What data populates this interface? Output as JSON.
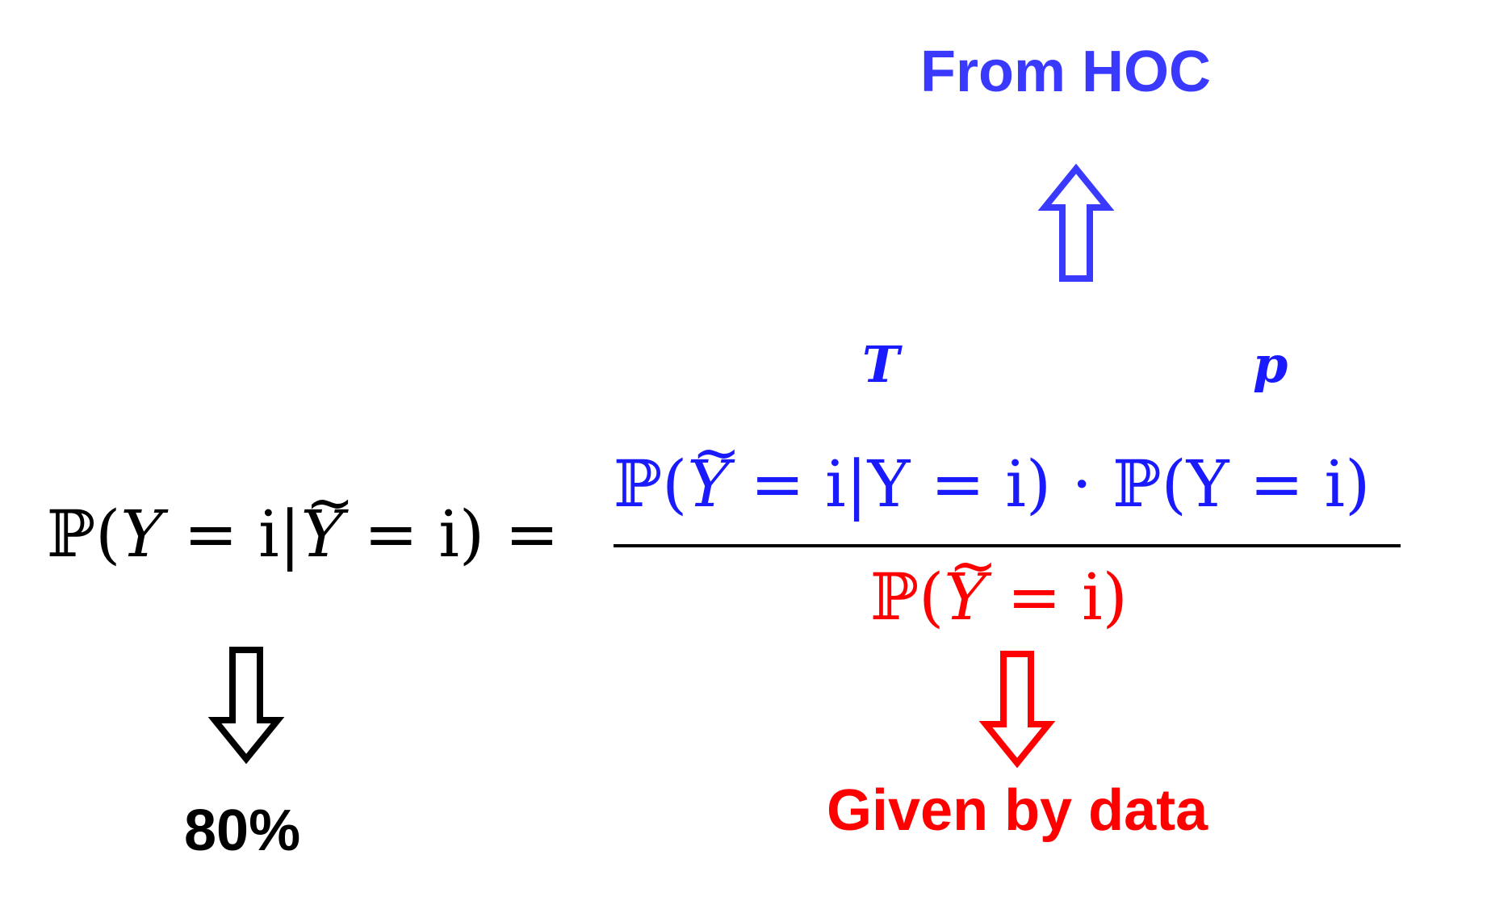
{
  "labels": {
    "from_hoc": "From HOC",
    "t_symbol": "T",
    "p_symbol": "p",
    "eighty_percent": "80%",
    "given_by_data": "Given by data"
  },
  "equation": {
    "lhs_prefix": "ℙ(",
    "lhs_y": "Y",
    "lhs_mid": " = i|",
    "lhs_ytilde": "Y",
    "lhs_suffix": " = i) =",
    "num_prefix": "ℙ(",
    "num_ytilde": "Y",
    "num_rest": " = i|Y = i) · ℙ(Y = i)",
    "den_prefix": "ℙ(",
    "den_ytilde": "Y",
    "den_suffix": " = i)"
  },
  "colors": {
    "hoc_blue": "#3a3aff",
    "math_blue": "#1a1aff",
    "data_red": "#ff0000",
    "black": "#000000"
  },
  "icons": {
    "up_arrow": "hollow-up-arrow-icon",
    "down_arrow_black": "hollow-down-arrow-icon",
    "down_arrow_red": "hollow-down-arrow-icon"
  }
}
